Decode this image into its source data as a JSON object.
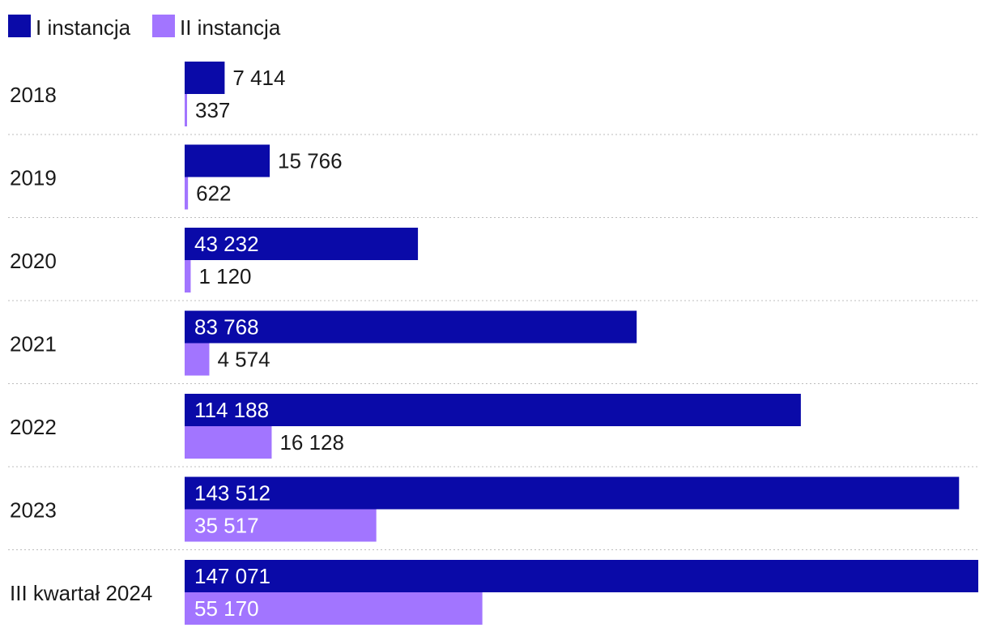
{
  "chart_data": {
    "type": "bar",
    "orientation": "horizontal",
    "categories": [
      "2018",
      "2019",
      "2020",
      "2021",
      "2022",
      "2023",
      "III kwartał 2024"
    ],
    "series": [
      {
        "name": "I instancja",
        "color": "#0a0aa8",
        "values": [
          7414,
          15766,
          43232,
          83768,
          114188,
          143512,
          147071
        ],
        "labels": [
          "7 414",
          "15 766",
          "43 232",
          "83 768",
          "114 188",
          "143 512",
          "147 071"
        ]
      },
      {
        "name": "II instancja",
        "color": "#a275ff",
        "values": [
          337,
          622,
          1120,
          4574,
          16128,
          35517,
          55170
        ],
        "labels": [
          "337",
          "622",
          "1 120",
          "4 574",
          "16 128",
          "35 517",
          "55 170"
        ]
      }
    ],
    "xlim": [
      0,
      147071
    ],
    "legend": "top-left",
    "grid": false
  }
}
